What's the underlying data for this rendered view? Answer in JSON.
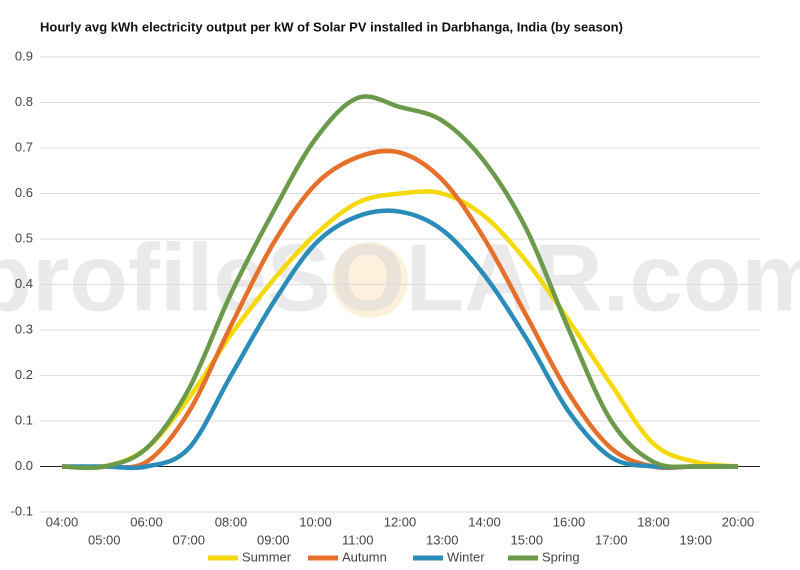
{
  "chart_data": {
    "type": "line",
    "title": "Hourly avg kWh electricity output per kW of Solar PV installed in Darbhanga, India (by season)",
    "watermark": "profileSOLAR.com",
    "categories": [
      "04:00",
      "05:00",
      "06:00",
      "07:00",
      "08:00",
      "09:00",
      "10:00",
      "11:00",
      "12:00",
      "13:00",
      "14:00",
      "15:00",
      "16:00",
      "17:00",
      "18:00",
      "19:00",
      "20:00"
    ],
    "series": [
      {
        "name": "Summer",
        "color": "#f5d90a",
        "values": [
          0,
          0,
          0.04,
          0.15,
          0.29,
          0.41,
          0.51,
          0.58,
          0.6,
          0.6,
          0.55,
          0.45,
          0.32,
          0.18,
          0.05,
          0.01,
          0
        ]
      },
      {
        "name": "Autumn",
        "color": "#e5702c",
        "values": [
          0,
          0,
          0.01,
          0.12,
          0.31,
          0.49,
          0.62,
          0.68,
          0.69,
          0.63,
          0.5,
          0.33,
          0.16,
          0.04,
          0,
          0,
          0
        ]
      },
      {
        "name": "Winter",
        "color": "#2b8cba",
        "values": [
          0,
          0,
          0,
          0.04,
          0.2,
          0.36,
          0.49,
          0.55,
          0.56,
          0.52,
          0.42,
          0.28,
          0.12,
          0.02,
          0,
          0,
          0
        ]
      },
      {
        "name": "Spring",
        "color": "#6b9a4b",
        "values": [
          0,
          0,
          0.04,
          0.17,
          0.38,
          0.56,
          0.72,
          0.81,
          0.79,
          0.76,
          0.67,
          0.52,
          0.3,
          0.1,
          0.01,
          0,
          0
        ]
      }
    ],
    "ylim": [
      -0.1,
      0.9
    ],
    "yticks": [
      -0.1,
      {
        "value": 0,
        "label": "0.0"
      },
      0.1,
      0.2,
      0.3,
      0.4,
      0.5,
      0.6,
      0.7,
      0.8,
      0.9
    ],
    "grid": true,
    "legend": "bottom"
  }
}
